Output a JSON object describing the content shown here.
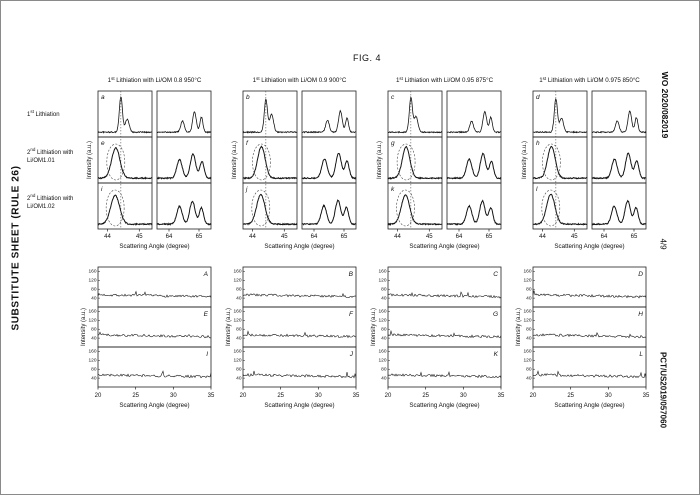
{
  "page": {
    "fig_label": "FIG. 4",
    "left_side_text": "SUBSTITUTE SHEET (RULE 26)",
    "right_top_text": "WO 2020/082019",
    "right_middle_text": "4/9",
    "right_bottom_text": "PCT/US2019/057060"
  },
  "chart_data": {
    "top": {
      "type": "line",
      "x_axis_label": "Scattering Angle (degree)",
      "y_axis_label": "Intensity (a.u.)",
      "left_x_range": [
        43.7,
        45.4
      ],
      "right_x_range": [
        63.6,
        65.4
      ],
      "left_x_ticks": [
        44,
        45
      ],
      "right_x_ticks": [
        64,
        65
      ],
      "reference_line_x": 44.42,
      "row_labels": [
        "1st Lithiation",
        "2nd Lithiation with Li/OM1.01",
        "2nd Lithiation with Li/OM1.02"
      ],
      "groups": [
        {
          "header": "1st Lithiation with Li/OM 0.8 950°C",
          "rows": [
            {
              "letter": "a",
              "ellipse": false,
              "left_peaks": [
                {
                  "c": 44.42,
                  "h": 0.95,
                  "w": 0.05
                },
                {
                  "c": 44.62,
                  "h": 0.35,
                  "w": 0.06
                }
              ],
              "right_peaks": [
                {
                  "c": 64.45,
                  "h": 0.3,
                  "w": 0.06
                },
                {
                  "c": 64.85,
                  "h": 0.55,
                  "w": 0.06
                },
                {
                  "c": 65.08,
                  "h": 0.4,
                  "w": 0.05
                }
              ]
            },
            {
              "letter": "e",
              "ellipse": true,
              "left_peaks": [
                {
                  "c": 44.26,
                  "h": 0.82,
                  "w": 0.13
                }
              ],
              "right_peaks": [
                {
                  "c": 64.35,
                  "h": 0.5,
                  "w": 0.09
                },
                {
                  "c": 64.8,
                  "h": 0.65,
                  "w": 0.09
                },
                {
                  "c": 65.1,
                  "h": 0.45,
                  "w": 0.07
                }
              ]
            },
            {
              "letter": "i",
              "ellipse": true,
              "left_peaks": [
                {
                  "c": 44.24,
                  "h": 0.78,
                  "w": 0.14
                }
              ],
              "right_peaks": [
                {
                  "c": 64.35,
                  "h": 0.48,
                  "w": 0.09
                },
                {
                  "c": 64.78,
                  "h": 0.62,
                  "w": 0.09
                },
                {
                  "c": 65.08,
                  "h": 0.44,
                  "w": 0.07
                }
              ]
            }
          ]
        },
        {
          "header": "1st Lithiation with Li/OM 0.9 900°C",
          "rows": [
            {
              "letter": "b",
              "ellipse": false,
              "left_peaks": [
                {
                  "c": 44.42,
                  "h": 0.88,
                  "w": 0.05
                },
                {
                  "c": 44.6,
                  "h": 0.48,
                  "w": 0.06
                }
              ],
              "right_peaks": [
                {
                  "c": 64.45,
                  "h": 0.32,
                  "w": 0.06
                },
                {
                  "c": 64.88,
                  "h": 0.58,
                  "w": 0.06
                },
                {
                  "c": 65.1,
                  "h": 0.38,
                  "w": 0.05
                }
              ]
            },
            {
              "letter": "f",
              "ellipse": true,
              "left_peaks": [
                {
                  "c": 44.28,
                  "h": 0.85,
                  "w": 0.12
                }
              ],
              "right_peaks": [
                {
                  "c": 64.35,
                  "h": 0.52,
                  "w": 0.09
                },
                {
                  "c": 64.82,
                  "h": 0.68,
                  "w": 0.09
                },
                {
                  "c": 65.1,
                  "h": 0.46,
                  "w": 0.07
                }
              ]
            },
            {
              "letter": "j",
              "ellipse": true,
              "left_peaks": [
                {
                  "c": 44.26,
                  "h": 0.8,
                  "w": 0.13
                }
              ],
              "right_peaks": [
                {
                  "c": 64.33,
                  "h": 0.5,
                  "w": 0.09
                },
                {
                  "c": 64.8,
                  "h": 0.64,
                  "w": 0.09
                },
                {
                  "c": 65.08,
                  "h": 0.45,
                  "w": 0.07
                }
              ]
            }
          ]
        },
        {
          "header": "1st Lithiation with Li/OM 0.95 875°C",
          "rows": [
            {
              "letter": "c",
              "ellipse": false,
              "left_peaks": [
                {
                  "c": 44.42,
                  "h": 0.92,
                  "w": 0.05
                },
                {
                  "c": 44.58,
                  "h": 0.42,
                  "w": 0.06
                }
              ],
              "right_peaks": [
                {
                  "c": 64.42,
                  "h": 0.3,
                  "w": 0.06
                },
                {
                  "c": 64.86,
                  "h": 0.56,
                  "w": 0.06
                },
                {
                  "c": 65.06,
                  "h": 0.4,
                  "w": 0.05
                }
              ]
            },
            {
              "letter": "g",
              "ellipse": true,
              "left_peaks": [
                {
                  "c": 44.27,
                  "h": 0.84,
                  "w": 0.12
                }
              ],
              "right_peaks": [
                {
                  "c": 64.34,
                  "h": 0.51,
                  "w": 0.09
                },
                {
                  "c": 64.8,
                  "h": 0.66,
                  "w": 0.09
                },
                {
                  "c": 65.08,
                  "h": 0.45,
                  "w": 0.07
                }
              ]
            },
            {
              "letter": "k",
              "ellipse": true,
              "left_peaks": [
                {
                  "c": 44.25,
                  "h": 0.79,
                  "w": 0.13
                }
              ],
              "right_peaks": [
                {
                  "c": 64.34,
                  "h": 0.49,
                  "w": 0.09
                },
                {
                  "c": 64.78,
                  "h": 0.63,
                  "w": 0.09
                },
                {
                  "c": 65.06,
                  "h": 0.44,
                  "w": 0.07
                }
              ]
            }
          ]
        },
        {
          "header": "1st Lithiation with Li/OM 0.975 850°C",
          "rows": [
            {
              "letter": "d",
              "ellipse": false,
              "left_peaks": [
                {
                  "c": 44.42,
                  "h": 0.9,
                  "w": 0.05
                },
                {
                  "c": 44.6,
                  "h": 0.38,
                  "w": 0.06
                }
              ],
              "right_peaks": [
                {
                  "c": 64.44,
                  "h": 0.3,
                  "w": 0.06
                },
                {
                  "c": 64.86,
                  "h": 0.57,
                  "w": 0.06
                },
                {
                  "c": 65.08,
                  "h": 0.39,
                  "w": 0.05
                }
              ]
            },
            {
              "letter": "h",
              "ellipse": true,
              "left_peaks": [
                {
                  "c": 44.28,
                  "h": 0.86,
                  "w": 0.12
                }
              ],
              "right_peaks": [
                {
                  "c": 64.35,
                  "h": 0.51,
                  "w": 0.09
                },
                {
                  "c": 64.81,
                  "h": 0.67,
                  "w": 0.09
                },
                {
                  "c": 65.09,
                  "h": 0.46,
                  "w": 0.07
                }
              ]
            },
            {
              "letter": "l",
              "ellipse": true,
              "left_peaks": [
                {
                  "c": 44.26,
                  "h": 0.81,
                  "w": 0.13
                }
              ],
              "right_peaks": [
                {
                  "c": 64.34,
                  "h": 0.49,
                  "w": 0.09
                },
                {
                  "c": 64.79,
                  "h": 0.63,
                  "w": 0.09
                },
                {
                  "c": 65.07,
                  "h": 0.44,
                  "w": 0.07
                }
              ]
            }
          ]
        }
      ]
    },
    "bottom": {
      "type": "line",
      "x_axis_label": "Scattering Angle (degree)",
      "y_axis_label": "Intensity (a.u.)",
      "x_range": [
        20,
        35
      ],
      "x_ticks": [
        20,
        25,
        30,
        35
      ],
      "y_range": [
        0,
        180
      ],
      "y_ticks": [
        160,
        120,
        80,
        40
      ],
      "baseline_level": 55,
      "panels": [
        {
          "letters": [
            "A",
            "E",
            "I"
          ]
        },
        {
          "letters": [
            "B",
            "F",
            "J"
          ]
        },
        {
          "letters": [
            "C",
            "G",
            "K"
          ]
        },
        {
          "letters": [
            "D",
            "H",
            "L"
          ]
        }
      ]
    }
  }
}
